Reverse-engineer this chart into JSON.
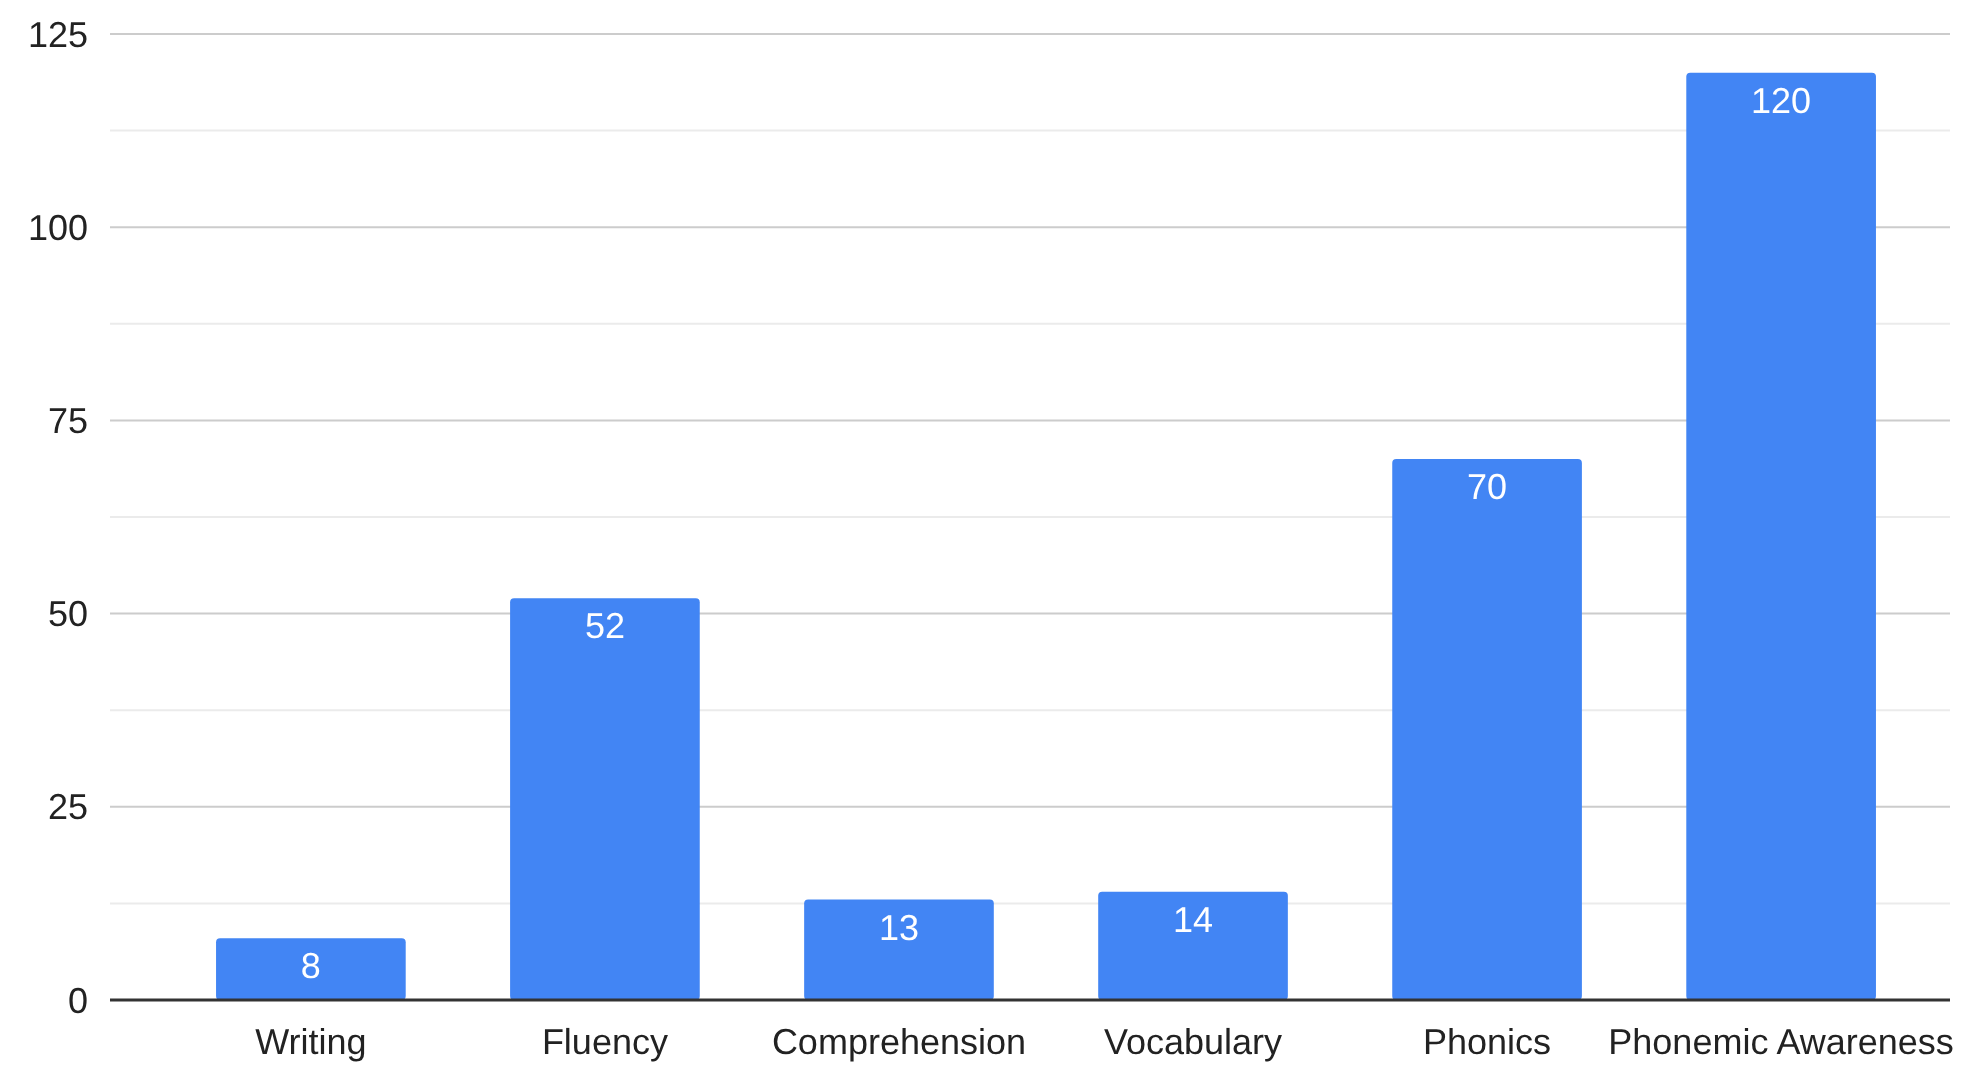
{
  "chart_data": {
    "type": "bar",
    "categories": [
      "Writing",
      "Fluency",
      "Comprehension",
      "Vocabulary",
      "Phonics",
      "Phonemic Awareness"
    ],
    "values": [
      8,
      52,
      13,
      14,
      70,
      120
    ],
    "color": "#4285f4",
    "ylim": [
      0,
      125
    ],
    "yticks": [
      0,
      {
        "value": 12.5,
        "label": null
      },
      25,
      {
        "value": 37.5,
        "label": null
      },
      50,
      {
        "value": 62.5,
        "label": null
      },
      75,
      {
        "value": 87.5,
        "label": null
      },
      100,
      {
        "value": 112.5,
        "label": null
      },
      125
    ],
    "grid": "y",
    "data_labels": true
  }
}
